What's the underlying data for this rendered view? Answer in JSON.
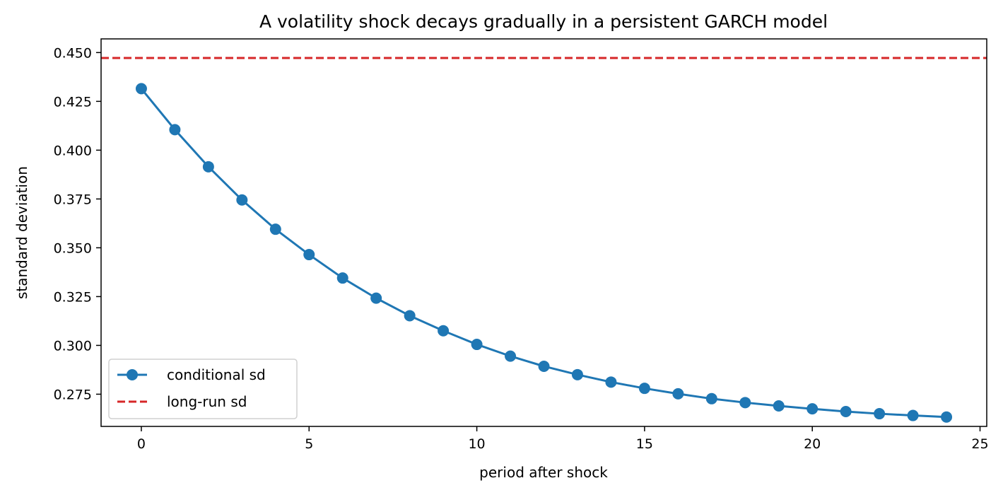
{
  "chart_data": {
    "type": "line",
    "title": "A volatility shock decays gradually in a persistent GARCH model",
    "xlabel": "period after shock",
    "ylabel": "standard deviation",
    "xlim": [
      -1.2,
      25.2
    ],
    "ylim": [
      0.2585,
      0.457
    ],
    "xticks": [
      0,
      5,
      10,
      15,
      20,
      25
    ],
    "yticks": [
      0.275,
      0.3,
      0.325,
      0.35,
      0.375,
      0.4,
      0.425,
      0.45
    ],
    "ytick_labels": [
      "0.275",
      "0.300",
      "0.325",
      "0.350",
      "0.375",
      "0.400",
      "0.425",
      "0.450"
    ],
    "grid": false,
    "legend_position": "lower-left",
    "series": [
      {
        "name": "conditional sd",
        "style": "solid-with-markers",
        "color": "#1f77b4",
        "x": [
          0,
          1,
          2,
          3,
          4,
          5,
          6,
          7,
          8,
          9,
          10,
          11,
          12,
          13,
          14,
          15,
          16,
          17,
          18,
          19,
          20,
          21,
          22,
          23,
          24
        ],
        "values": [
          0.4315,
          0.4105,
          0.3915,
          0.3745,
          0.3595,
          0.3465,
          0.3345,
          0.3242,
          0.3152,
          0.3075,
          0.3005,
          0.2945,
          0.2893,
          0.285,
          0.2812,
          0.278,
          0.2752,
          0.2727,
          0.2707,
          0.269,
          0.2675,
          0.2661,
          0.265,
          0.2641,
          0.2633
        ]
      },
      {
        "name": "long-run sd",
        "style": "dashed",
        "color": "#d62728",
        "value": 0.4472
      }
    ]
  }
}
